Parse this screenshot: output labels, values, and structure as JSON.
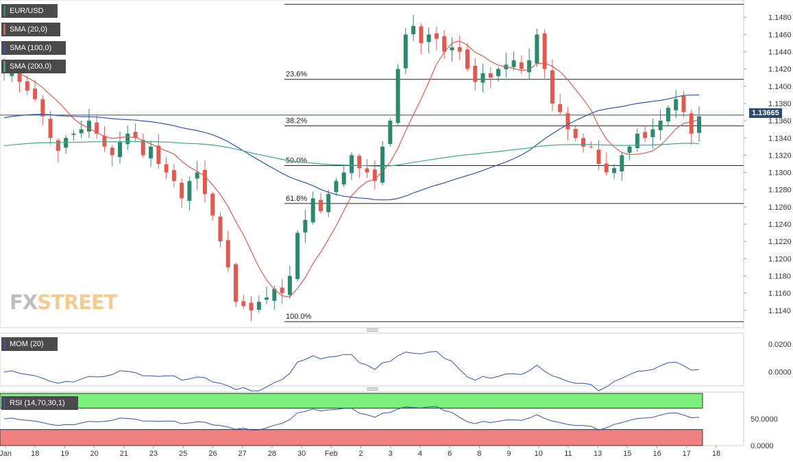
{
  "symbol_label": "EUR/USD",
  "indicators": [
    {
      "label": "SMA (20,0)",
      "color": "#e05a4f"
    },
    {
      "label": "SMA (100,0)",
      "color": "#2d55b5"
    },
    {
      "label": "SMA (200,0)",
      "color": "#3aaa8a"
    }
  ],
  "mom_label": "MOM (20)",
  "rsi_label": "RSI (14,70,30,1)",
  "current_price": "1.13665",
  "watermark": {
    "part1": "FX",
    "part2": "STREET"
  },
  "colors": {
    "up": "#2b8a6e",
    "down": "#e05a4f",
    "sma20": "#e05a4f",
    "sma100": "#2d55b5",
    "sma200": "#3aaa8a",
    "mom": "#2d55b5",
    "rsi": "#2d55b5",
    "rsi_high": "#7cf07c",
    "rsi_low": "#f08080"
  },
  "chart_data": {
    "type": "candlestick",
    "price_axis": {
      "min": 1.112,
      "max": 1.15,
      "ticks": [
        "1.1140",
        "1.1160",
        "1.1180",
        "1.1200",
        "1.1220",
        "1.1240",
        "1.1260",
        "1.1280",
        "1.1300",
        "1.1320",
        "1.1340",
        "1.1360",
        "1.1380",
        "1.1400",
        "1.1420",
        "1.1440",
        "1.1460",
        "1.1480"
      ]
    },
    "x_axis_labels": [
      "Jan",
      "18",
      "19",
      "20",
      "21",
      "23",
      "25",
      "26",
      "27",
      "28",
      "30",
      "Feb",
      "2",
      "3",
      "4",
      "6",
      "8",
      "9",
      "10",
      "11",
      "13",
      "15",
      "16",
      "17",
      "18"
    ],
    "fibonacci": [
      {
        "label": "23.6%",
        "price": 1.1408
      },
      {
        "label": "38.2%",
        "price": 1.1354
      },
      {
        "label": "50.0%",
        "price": 1.1308
      },
      {
        "label": "61.8%",
        "price": 1.1264
      },
      {
        "label": "100.0%",
        "price": 1.1127
      }
    ],
    "fib_high": 1.1495,
    "price_line": 1.13665,
    "close_path": [
      1.1415,
      1.1425,
      1.1405,
      1.1395,
      1.1385,
      1.1365,
      1.134,
      1.1325,
      1.134,
      1.1345,
      1.135,
      1.136,
      1.1345,
      1.133,
      1.132,
      1.1335,
      1.1345,
      1.134,
      1.132,
      1.133,
      1.131,
      1.13,
      1.129,
      1.127,
      1.129,
      1.13,
      1.1275,
      1.125,
      1.122,
      1.119,
      1.115,
      1.1145,
      1.114,
      1.115,
      1.1155,
      1.1165,
      1.116,
      1.118,
      1.123,
      1.1245,
      1.127,
      1.1255,
      1.1275,
      1.129,
      1.13,
      1.132,
      1.1305,
      1.13,
      1.129,
      1.133,
      1.136,
      1.142,
      1.146,
      1.147,
      1.145,
      1.146,
      1.1455,
      1.144,
      1.1445,
      1.144,
      1.142,
      1.1405,
      1.1415,
      1.141,
      1.142,
      1.1425,
      1.143,
      1.142,
      1.143,
      1.146,
      1.142,
      1.138,
      1.137,
      1.135,
      1.134,
      1.133,
      1.133,
      1.131,
      1.13,
      1.1305,
      1.132,
      1.133,
      1.1345,
      1.134,
      1.135,
      1.136,
      1.1375,
      1.1385,
      1.137,
      1.1345,
      1.1365
    ],
    "mom_axis": {
      "min": -0.01,
      "max": 0.028,
      "ticks": [
        "0.0200",
        "0.0000"
      ]
    },
    "rsi_axis": {
      "min": 0,
      "max": 100,
      "ticks": [
        "50.0000",
        "0.0000"
      ],
      "overbought": 70,
      "oversold": 30
    }
  }
}
